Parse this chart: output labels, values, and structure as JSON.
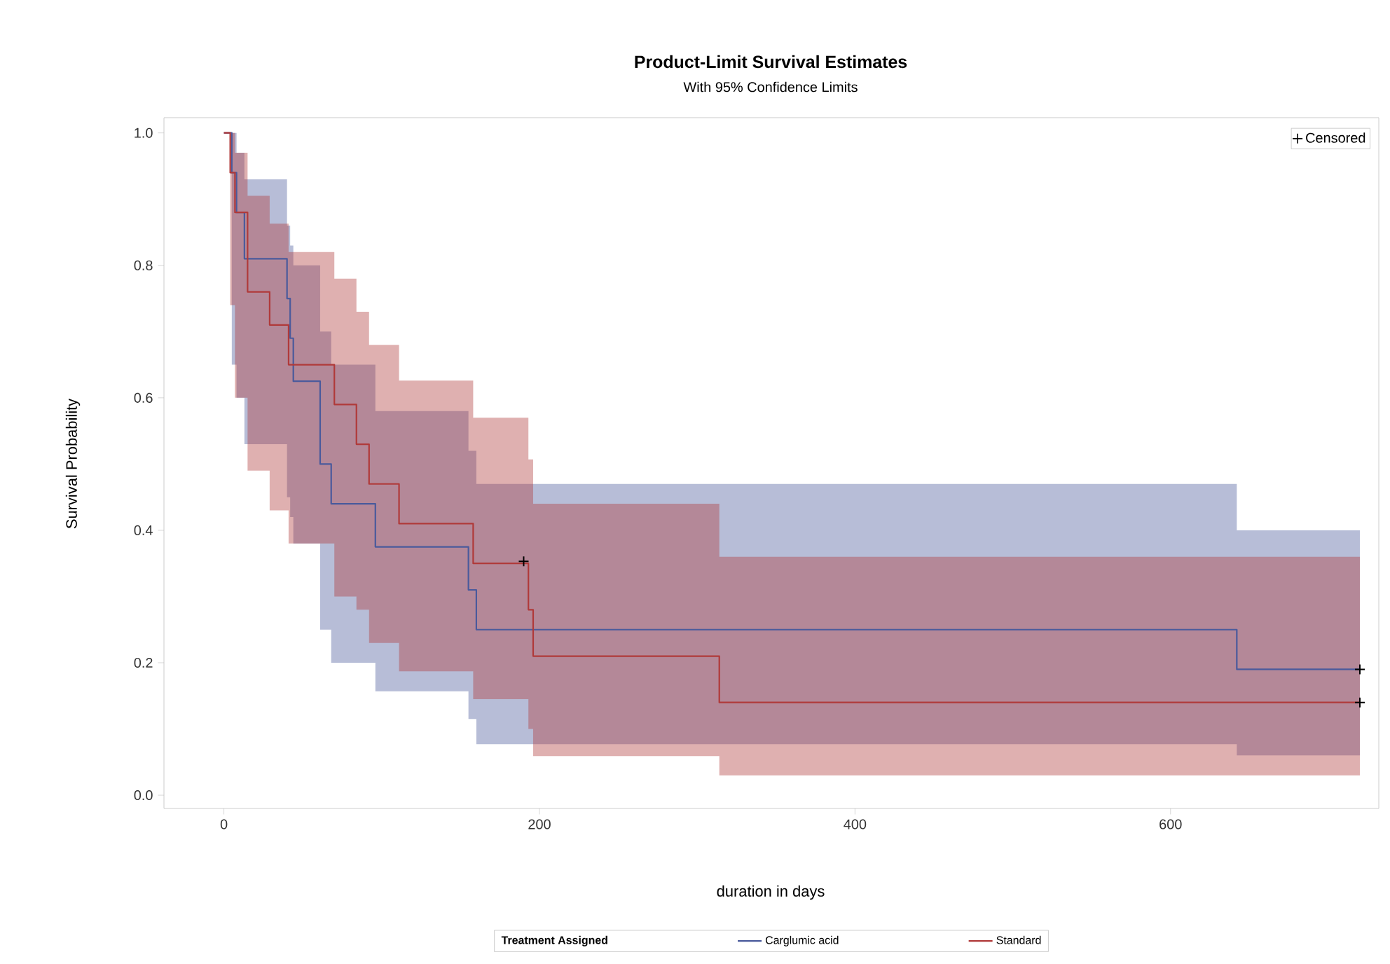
{
  "chart_data": {
    "type": "step",
    "title": "Product-Limit Survival Estimates",
    "subtitle": "With 95% Confidence Limits",
    "xlabel": "duration in days",
    "ylabel": "Survival Probability",
    "legend_title": "Treatment Assigned",
    "legend": "bottom",
    "xlim": [
      -38,
      732
    ],
    "ylim": [
      -0.02,
      1.023
    ],
    "xticks": [
      0,
      200,
      400,
      600
    ],
    "yticks": [
      {
        "value": 0,
        "label": "0.0"
      },
      {
        "value": 0.2,
        "label": "0.2"
      },
      {
        "value": 0.4,
        "label": "0.4"
      },
      {
        "value": 0.6,
        "label": "0.6"
      },
      {
        "value": 0.8,
        "label": "0.8"
      },
      {
        "value": 1,
        "label": "1.0"
      }
    ],
    "series": [
      {
        "name": "Carglumic acid",
        "color": "#4a5a9c",
        "x": [
          0,
          5,
          8,
          13,
          40,
          42,
          44,
          61,
          68,
          96,
          155,
          160,
          642,
          720
        ],
        "values": [
          1.0,
          0.94,
          0.88,
          0.81,
          0.75,
          0.69,
          0.625,
          0.5,
          0.44,
          0.375,
          0.31,
          0.25,
          0.19,
          0.19
        ],
        "upper": [
          1.0,
          1.0,
          0.97,
          0.93,
          0.86,
          0.83,
          0.8,
          0.7,
          0.65,
          0.58,
          0.52,
          0.47,
          0.4,
          0.4
        ],
        "lower": [
          1.0,
          0.65,
          0.6,
          0.53,
          0.45,
          0.42,
          0.38,
          0.25,
          0.2,
          0.157,
          0.115,
          0.077,
          0.06,
          0.06
        ]
      },
      {
        "name": "Standard",
        "color": "#b03a3a",
        "x": [
          0,
          4,
          7,
          15,
          29,
          41,
          70,
          84,
          92,
          111,
          158,
          193,
          196,
          314,
          720
        ],
        "values": [
          1.0,
          0.94,
          0.88,
          0.76,
          0.71,
          0.65,
          0.59,
          0.53,
          0.47,
          0.41,
          0.35,
          0.28,
          0.21,
          0.14,
          0.14
        ],
        "upper": [
          1.0,
          1.0,
          0.97,
          0.905,
          0.863,
          0.82,
          0.78,
          0.73,
          0.68,
          0.626,
          0.57,
          0.507,
          0.44,
          0.36,
          0.36
        ],
        "lower": [
          1.0,
          0.74,
          0.6,
          0.49,
          0.43,
          0.38,
          0.3,
          0.28,
          0.23,
          0.187,
          0.145,
          0.1,
          0.059,
          0.03,
          0.03
        ]
      },
      {
        "name": "Censored",
        "type": "scatter",
        "marker": "cross",
        "color": "#000000",
        "x": [
          190,
          720,
          720
        ],
        "values": [
          0.353,
          0.19,
          0.14
        ]
      }
    ]
  }
}
